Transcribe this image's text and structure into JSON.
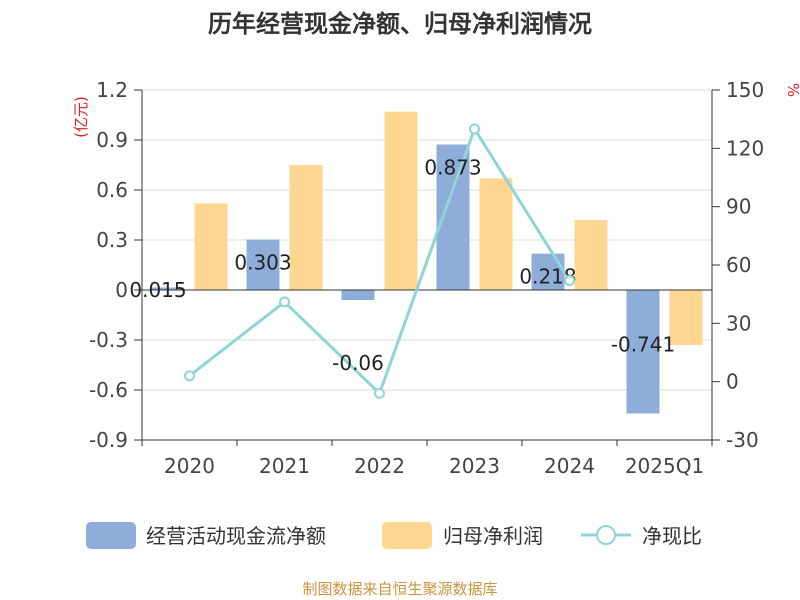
{
  "title": "历年经营现金净额、归母净利润情况",
  "source": "制图数据来自恒生聚源数据库",
  "colors": {
    "cash": "#8eadd9",
    "profit": "#ffd792",
    "ratio": "#8fd4d8"
  },
  "chart_data": {
    "type": "bar",
    "title": "历年经营现金净额、归母净利润情况",
    "categories": [
      "2020",
      "2021",
      "2022",
      "2023",
      "2024",
      "2025Q1"
    ],
    "y_left": {
      "unit": "(亿元)",
      "ylim": [
        -0.9,
        1.2
      ],
      "ticks": [
        "1.2",
        "0.9",
        "0.6",
        "0.3",
        "0",
        "-0.3",
        "-0.6",
        "-0.9"
      ]
    },
    "y_right": {
      "unit": "%",
      "ylim": [
        -30,
        150
      ],
      "ticks": [
        "150",
        "120",
        "90",
        "60",
        "30",
        "0",
        "-30"
      ]
    },
    "series": [
      {
        "name": "经营活动现金流净额",
        "type": "bar",
        "axis": "left",
        "values": [
          0.015,
          0.303,
          -0.06,
          0.873,
          0.218,
          -0.741
        ],
        "labels": [
          "0.015",
          "0.303",
          "-0.06",
          "0.873",
          "0.218",
          "-0.741"
        ]
      },
      {
        "name": "归母净利润",
        "type": "bar",
        "axis": "left",
        "values": [
          0.52,
          0.75,
          1.07,
          0.67,
          0.42,
          -0.33
        ]
      },
      {
        "name": "净现比",
        "type": "line",
        "axis": "right",
        "values": [
          3,
          41,
          -6,
          130,
          52,
          null
        ]
      }
    ],
    "grid": true,
    "legend_position": "bottom"
  }
}
